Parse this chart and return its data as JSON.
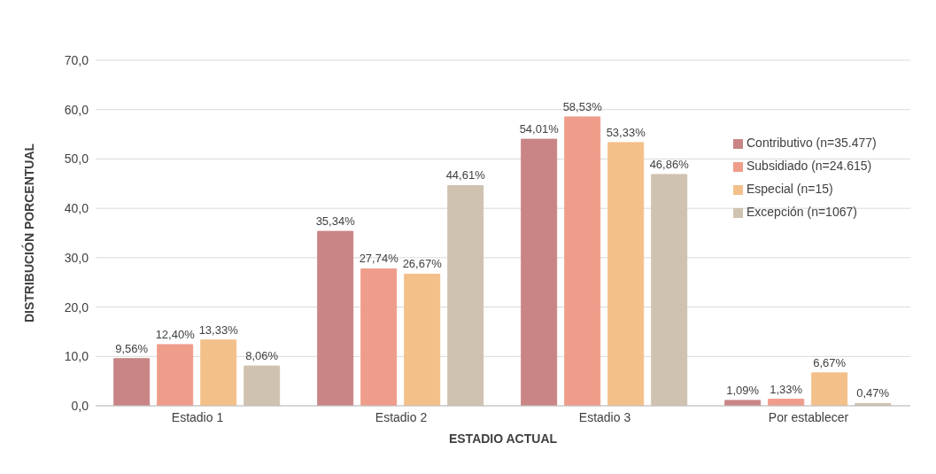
{
  "chart_data": {
    "type": "bar",
    "xlabel": "ESTADIO ACTUAL",
    "ylabel": "DISTRIBUCIÓN PORCENTUAL",
    "categories": [
      "Estadio 1",
      "Estadio 2",
      "Estadio 3",
      "Por establecer"
    ],
    "series": [
      {
        "name": "Contributivo (n=35.477)",
        "color": "#c98585",
        "values": [
          9.56,
          35.34,
          54.01,
          1.09
        ],
        "value_labels": [
          "9,56%",
          "35,34%",
          "54,01%",
          "1,09%"
        ]
      },
      {
        "name": "Subsidiado (n=24.615)",
        "color": "#ef9d8b",
        "values": [
          12.4,
          27.74,
          58.53,
          1.33
        ],
        "value_labels": [
          "12,40%",
          "27,74%",
          "58,53%",
          "1,33%"
        ]
      },
      {
        "name": "Especial (n=15)",
        "color": "#f3c08a",
        "values": [
          13.33,
          26.67,
          53.33,
          6.67
        ],
        "value_labels": [
          "13,33%",
          "26,67%",
          "53,33%",
          "6,67%"
        ]
      },
      {
        "name": "Excepción (n=1067)",
        "color": "#cfc2b0",
        "values": [
          8.06,
          44.61,
          46.86,
          0.47
        ],
        "value_labels": [
          "8,06%",
          "44,61%",
          "46,86%",
          "0,47%"
        ]
      }
    ],
    "ylim": [
      0,
      70
    ],
    "yticks": [
      {
        "value": 0,
        "label": "0,0"
      },
      {
        "value": 10,
        "label": "10,0"
      },
      {
        "value": 20,
        "label": "20,0"
      },
      {
        "value": 30,
        "label": "30,0"
      },
      {
        "value": 40,
        "label": "40,0"
      },
      {
        "value": 50,
        "label": "50,0"
      },
      {
        "value": 60,
        "label": "60,0"
      },
      {
        "value": 70,
        "label": "70,0"
      }
    ],
    "grid": "y",
    "legend": "right"
  }
}
